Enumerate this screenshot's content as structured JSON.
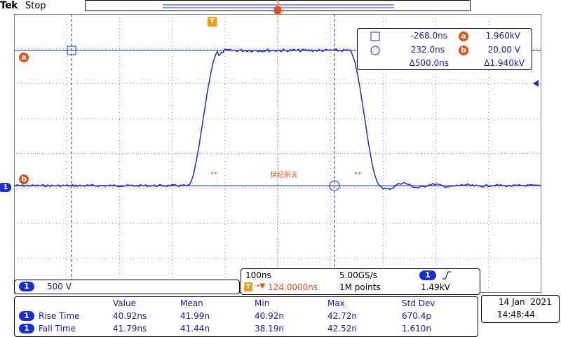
{
  "header": {
    "brand": "Tek",
    "state": "Stop"
  },
  "markers": {
    "trigger_flag": "T",
    "cursor_a": "a",
    "cursor_b": "b",
    "channel": "1"
  },
  "waveform": {
    "watermark": "世纪新天",
    "marker_left": "**",
    "marker_right": "**"
  },
  "cursor_readout": {
    "t1": "-268.0ns",
    "t2": "232.0ns",
    "dt": "Δ500.0ns",
    "va": "1.960kV",
    "vb": "20.00 V",
    "dv": "Δ1.940kV",
    "label_a": "a",
    "label_b": "b"
  },
  "channel_scale": {
    "channel": "1",
    "scale": "500 V"
  },
  "timebase": {
    "horizontal": "100ns",
    "sample_rate": "5.00GS/s",
    "trigger_channel": "1",
    "trigger_level": "1.49kV",
    "position": "124.0000ns",
    "record_length": "1M points",
    "trigger_prefix": "T"
  },
  "measurements": {
    "columns": [
      "Value",
      "Mean",
      "Min",
      "Max",
      "Std Dev"
    ],
    "rows": [
      {
        "channel": "1",
        "name": "Rise Time",
        "value": "40.92ns",
        "mean": "41.99n",
        "min": "40.92n",
        "max": "42.72n",
        "std": "670.4p"
      },
      {
        "channel": "1",
        "name": "Fall Time",
        "value": "41.79ns",
        "mean": "41.44n",
        "min": "38.19n",
        "max": "42.52n",
        "std": "1.610n"
      }
    ]
  },
  "datetime": {
    "date": "14 Jan  2021",
    "time": "14:48:44"
  },
  "colors": {
    "trace": "#1a2fd0",
    "accent": "#e0521a",
    "trigger": "#f29a1a"
  }
}
